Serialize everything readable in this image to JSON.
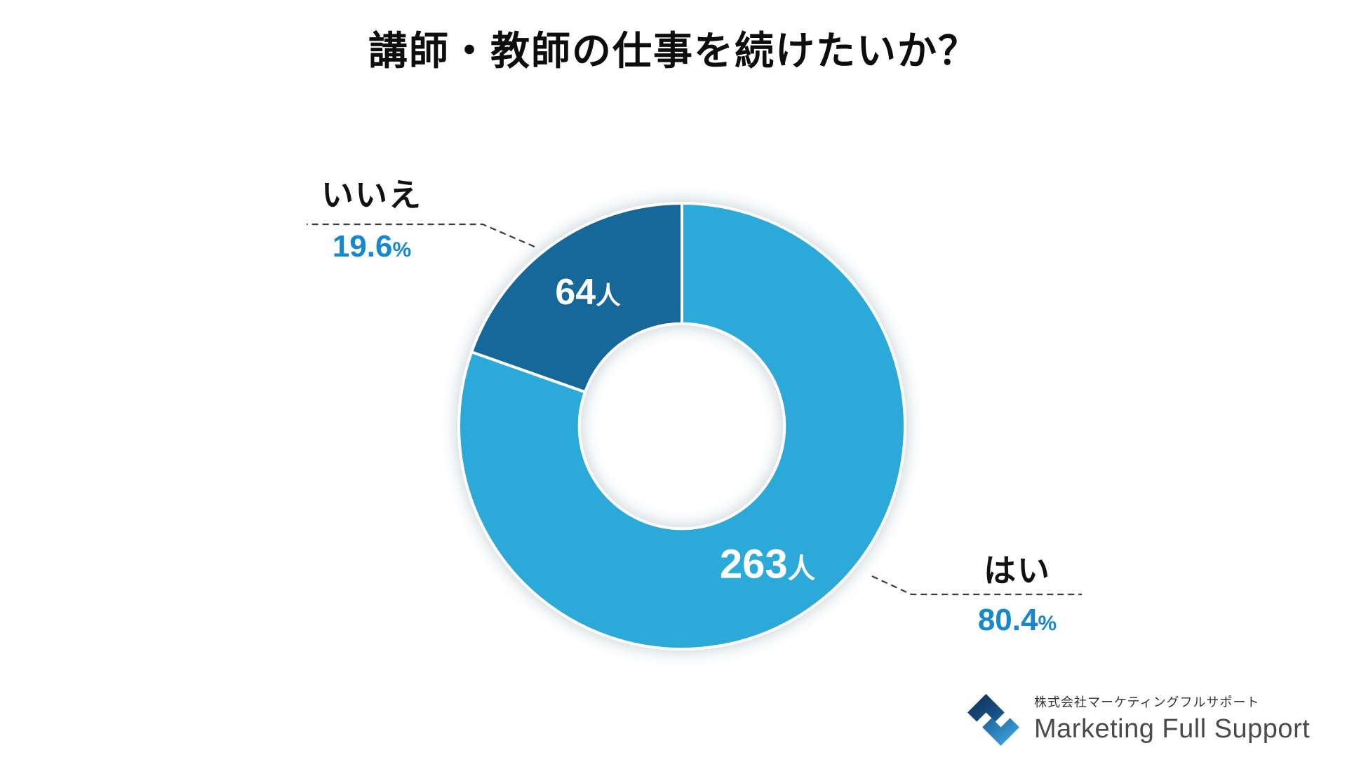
{
  "title": "講師・教師の仕事を続けたいか？",
  "chart_data": {
    "type": "pie",
    "subtype": "donut",
    "title": "講師・教師の仕事を続けたいか？",
    "start_angle_deg": 0,
    "direction": "clockwise",
    "percent_symbol": "%",
    "percent_label_color": "#1789CB",
    "hole_radius_ratio": 0.46,
    "background": "#FFFFFF",
    "segments": [
      {
        "label": "はい",
        "value": 263,
        "unit": "人",
        "percent": 80.4,
        "color": "#2BAAD9"
      },
      {
        "label": "いいえ",
        "value": 64,
        "unit": "人",
        "percent": 19.6,
        "color": "#17689A"
      }
    ]
  },
  "footer": {
    "company_ja": "株式会社マーケティングフルサポート",
    "company_en": "Marketing Full Support",
    "logo_colors": {
      "dark": "#0D2B52",
      "mid": "#1D5E96",
      "light": "#3FB3E8"
    }
  }
}
